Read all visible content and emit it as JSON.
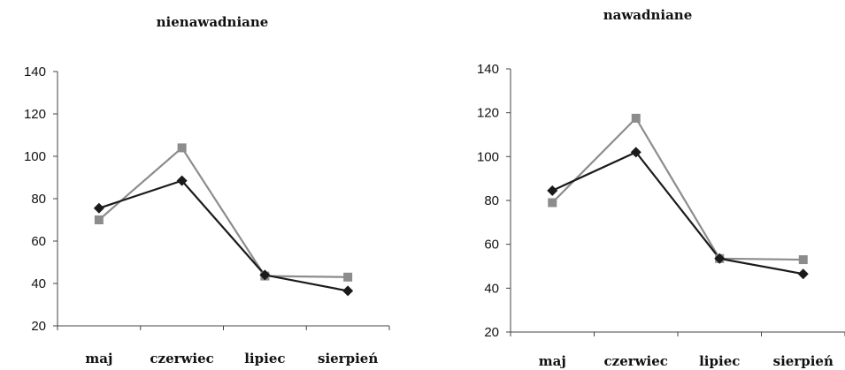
{
  "chart_data": [
    {
      "type": "line",
      "title": "nienawadniane",
      "categories": [
        "maj",
        "czerwiec",
        "lipiec",
        "sierpień"
      ],
      "ylim": [
        20,
        140
      ],
      "yticks": [
        20,
        40,
        60,
        80,
        100,
        120,
        140
      ],
      "grid": false,
      "series": [
        {
          "marker": "diamond",
          "color": "#1a1a1a",
          "values": [
            75.5,
            88.5,
            44,
            36.5
          ]
        },
        {
          "marker": "square",
          "color": "#8c8c8c",
          "values": [
            70,
            104,
            43.5,
            43
          ]
        }
      ]
    },
    {
      "type": "line",
      "title": "nawadniane",
      "categories": [
        "maj",
        "czerwiec",
        "lipiec",
        "sierpień"
      ],
      "ylim": [
        20,
        140
      ],
      "yticks": [
        20,
        40,
        60,
        80,
        100,
        120,
        140
      ],
      "grid": false,
      "series": [
        {
          "marker": "diamond",
          "color": "#1a1a1a",
          "values": [
            84.5,
            102,
            53.5,
            46.5
          ]
        },
        {
          "marker": "square",
          "color": "#8c8c8c",
          "values": [
            79,
            117.5,
            53.5,
            53
          ]
        }
      ]
    }
  ]
}
